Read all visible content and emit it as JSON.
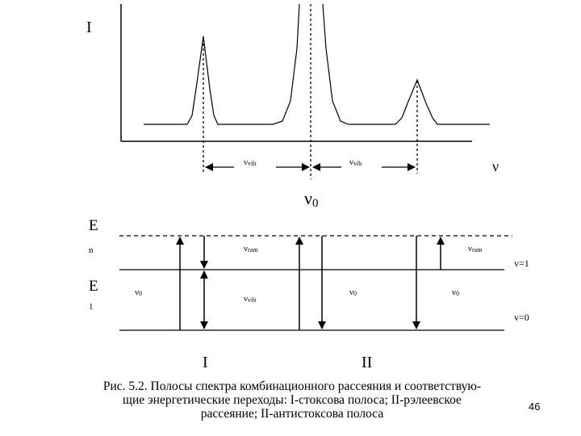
{
  "spectrum": {
    "y_axis_label": "I",
    "x_axis_label": "ν",
    "left_spacing_label": "ν",
    "left_spacing_sub": "vib",
    "right_spacing_label": "ν",
    "right_spacing_sub": "vib",
    "center_label": "ν",
    "center_sub": "0"
  },
  "levels": {
    "e_label_top": "E",
    "e_sub_top": "n",
    "e_label_bottom": "E",
    "e_sub_bottom": "1",
    "v1_label": "v=1",
    "v0_label": "v=0",
    "left_v0_label": "ν",
    "left_v0_sub": "0",
    "vvib_label": "ν",
    "vvib_sub": "vib",
    "vram_left_label": "ν",
    "vram_left_sub": "ram",
    "mid_v0_label": "ν",
    "mid_v0_sub": "0",
    "right_v0_label": "ν",
    "right_v0_sub": "0",
    "vram_right_label": "ν",
    "vram_right_sub": "ram",
    "group_one_label": "I",
    "group_two_label": "II"
  },
  "caption": {
    "line1": "Рис. 5.2. Полосы спектра комбинационного рассеяния и соответствую-",
    "line2": "щие энергетические переходы: I-стоксова полоса; II-рэлеевское",
    "line3": "рассеяние; II-антистоксова полоса"
  },
  "page_number": "46"
}
